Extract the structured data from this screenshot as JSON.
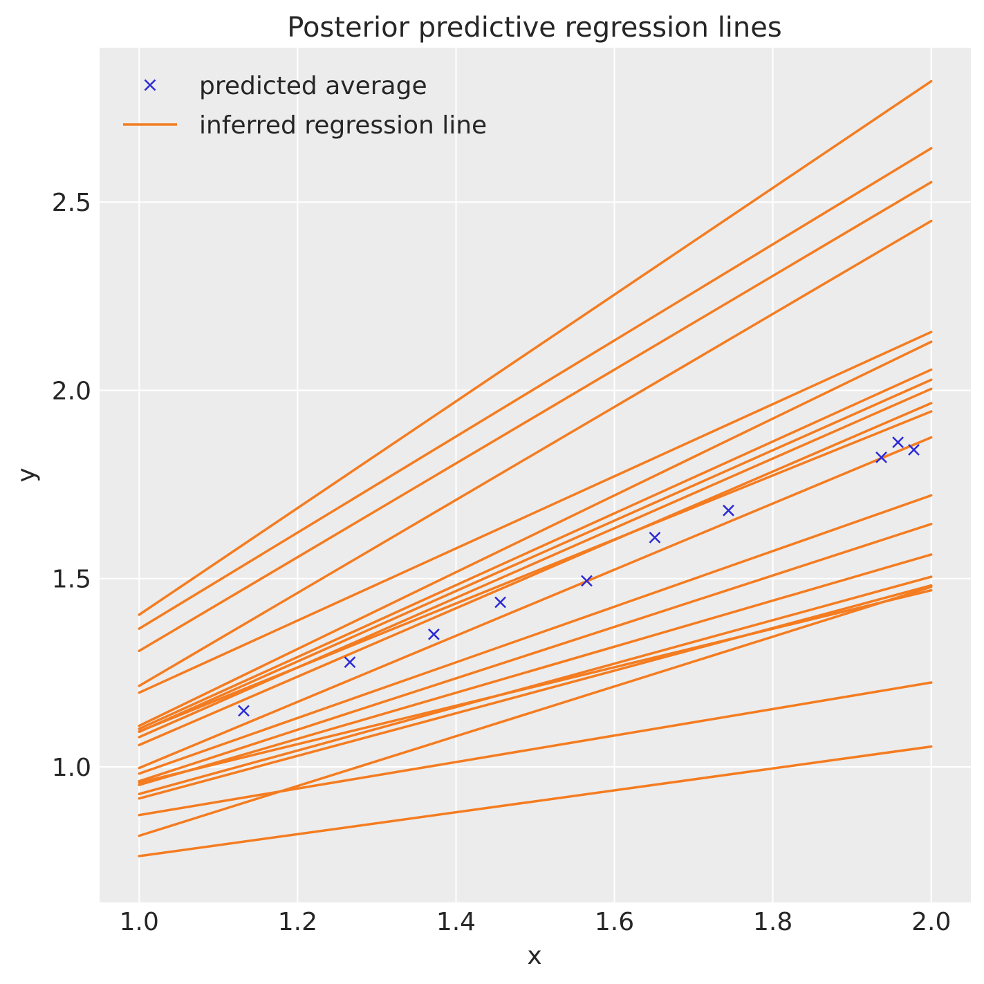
{
  "chart_data": {
    "type": "line",
    "title": "Posterior predictive regression lines",
    "xlabel": "x",
    "ylabel": "y",
    "xlim": [
      0.95,
      2.05
    ],
    "ylim": [
      0.64,
      2.91
    ],
    "grid": true,
    "legend_position": "top-left",
    "x_ticks": [
      1.0,
      1.2,
      1.4,
      1.6,
      1.8,
      2.0
    ],
    "x_tick_labels": [
      "1.0",
      "1.2",
      "1.4",
      "1.6",
      "1.8",
      "2.0"
    ],
    "y_ticks": [
      1.0,
      1.5,
      2.0,
      2.5
    ],
    "y_tick_labels": [
      "1.0",
      "1.5",
      "2.0",
      "2.5"
    ],
    "legend": [
      {
        "label": "predicted average",
        "marker": "x",
        "color": "#2a2ad6"
      },
      {
        "label": "inferred regression line",
        "marker": "line",
        "color": "#f47c20"
      }
    ],
    "series": [
      {
        "name": "predicted average",
        "kind": "scatter",
        "marker": "x",
        "color": "#2a2ad6",
        "points": [
          {
            "x": 1.132,
            "y": 1.149
          },
          {
            "x": 1.266,
            "y": 1.278
          },
          {
            "x": 1.372,
            "y": 1.352
          },
          {
            "x": 1.456,
            "y": 1.437
          },
          {
            "x": 1.565,
            "y": 1.494
          },
          {
            "x": 1.651,
            "y": 1.609
          },
          {
            "x": 1.744,
            "y": 1.681
          },
          {
            "x": 1.937,
            "y": 1.822
          },
          {
            "x": 1.958,
            "y": 1.862
          },
          {
            "x": 1.978,
            "y": 1.842
          }
        ]
      },
      {
        "name": "inferred regression line",
        "kind": "lines",
        "color": "#f47c20",
        "x_range": [
          1.0,
          2.0
        ],
        "lines": [
          {
            "y_at_1": 1.404,
            "y_at_2": 2.821
          },
          {
            "y_at_1": 1.367,
            "y_at_2": 2.643
          },
          {
            "y_at_1": 1.308,
            "y_at_2": 2.553
          },
          {
            "y_at_1": 1.215,
            "y_at_2": 2.45
          },
          {
            "y_at_1": 1.197,
            "y_at_2": 2.155
          },
          {
            "y_at_1": 1.109,
            "y_at_2": 2.129
          },
          {
            "y_at_1": 1.101,
            "y_at_2": 2.055
          },
          {
            "y_at_1": 1.093,
            "y_at_2": 2.028
          },
          {
            "y_at_1": 1.079,
            "y_at_2": 2.004
          },
          {
            "y_at_1": 1.058,
            "y_at_2": 1.966
          },
          {
            "y_at_1": 1.094,
            "y_at_2": 1.944
          },
          {
            "y_at_1": 0.997,
            "y_at_2": 1.875
          },
          {
            "y_at_1": 0.982,
            "y_at_2": 1.721
          },
          {
            "y_at_1": 0.962,
            "y_at_2": 1.645
          },
          {
            "y_at_1": 0.952,
            "y_at_2": 1.564
          },
          {
            "y_at_1": 0.928,
            "y_at_2": 1.505
          },
          {
            "y_at_1": 0.916,
            "y_at_2": 1.482
          },
          {
            "y_at_1": 0.958,
            "y_at_2": 1.469
          },
          {
            "y_at_1": 0.872,
            "y_at_2": 1.224
          },
          {
            "y_at_1": 0.817,
            "y_at_2": 1.478
          },
          {
            "y_at_1": 0.763,
            "y_at_2": 1.054
          }
        ]
      }
    ]
  }
}
